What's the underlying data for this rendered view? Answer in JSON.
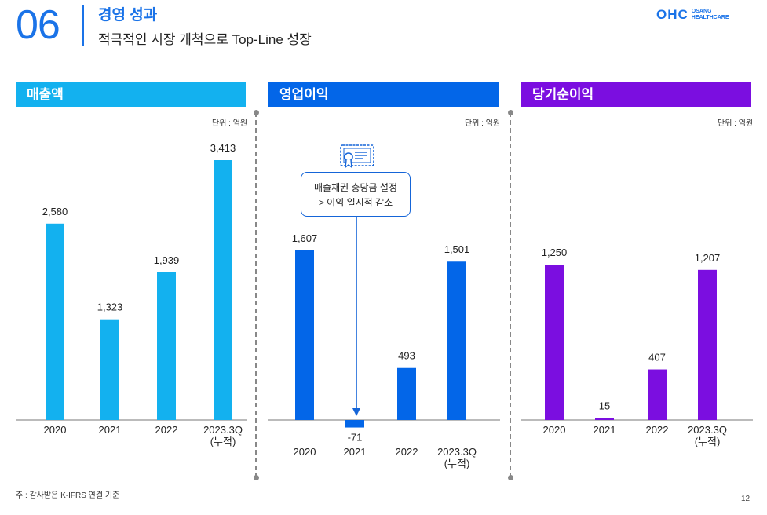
{
  "header": {
    "section_number": "06",
    "title": "경영 성과",
    "subtitle": "적극적인 시장 개척으로 Top-Line 성장",
    "logo": {
      "mark": "OHC",
      "line1": "OSANG",
      "line2": "HEALTHCARE",
      "color": "#1a73e8"
    }
  },
  "panels": [
    {
      "title": "매출액",
      "color": "#13b1ef",
      "unit": "단위 : 억원"
    },
    {
      "title": "영업이익",
      "color": "#0366e8",
      "unit": "단위 : 억원"
    },
    {
      "title": "당기순이익",
      "color": "#7b0ee0",
      "unit": "단위 : 억원"
    }
  ],
  "callout": {
    "line1": "매출채권 충당금 설정",
    "line2": "> 이익 일시적 감소",
    "icon": "certificate-icon"
  },
  "chart_data": [
    {
      "type": "bar",
      "title": "매출액",
      "unit": "단위 : 억원",
      "categories": [
        "2020",
        "2021",
        "2022",
        "2023.3Q"
      ],
      "category_sublabels": [
        "",
        "",
        "",
        "(누적)"
      ],
      "values": [
        2580,
        1323,
        1939,
        3413
      ],
      "labels": [
        "2,580",
        "1,323",
        "1,939",
        "3,413"
      ],
      "color": "#13b1ef"
    },
    {
      "type": "bar",
      "title": "영업이익",
      "unit": "단위 : 억원",
      "categories": [
        "2020",
        "2021",
        "2022",
        "2023.3Q"
      ],
      "category_sublabels": [
        "",
        "",
        "",
        "(누적)"
      ],
      "values": [
        1607,
        -71,
        493,
        1501
      ],
      "labels": [
        "1,607",
        "-71",
        "493",
        "1,501"
      ],
      "color": "#0366e8"
    },
    {
      "type": "bar",
      "title": "당기순이익",
      "unit": "단위 : 억원",
      "categories": [
        "2020",
        "2021",
        "2022",
        "2023.3Q"
      ],
      "category_sublabels": [
        "",
        "",
        "",
        "(누적)"
      ],
      "values": [
        1250,
        15,
        407,
        1207
      ],
      "labels": [
        "1,250",
        "15",
        "407",
        "1,207"
      ],
      "color": "#7b0ee0"
    }
  ],
  "footnote": "주 : 감사받은 K-IFRS 연결 기준",
  "page_number": "12"
}
